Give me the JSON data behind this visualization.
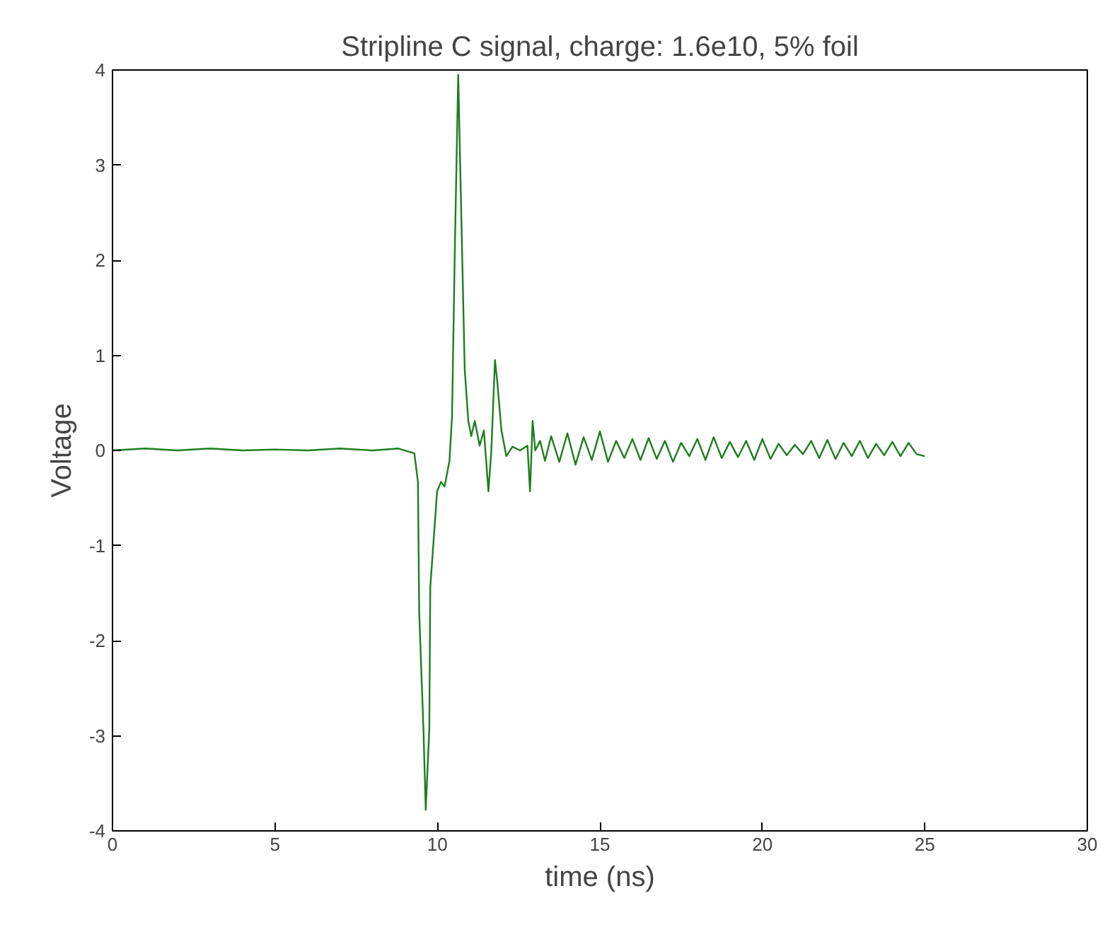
{
  "chart_data": {
    "type": "line",
    "title": "Stripline C signal, charge: 1.6e10, 5% foil",
    "xlabel": "time (ns)",
    "ylabel": "Voltage",
    "xlim": [
      0,
      30
    ],
    "ylim": [
      -4,
      4
    ],
    "xticks": [
      0,
      5,
      10,
      15,
      20,
      25,
      30
    ],
    "yticks": [
      -4,
      -3,
      -2,
      -1,
      0,
      1,
      2,
      3,
      4
    ],
    "grid": false,
    "marker": "none",
    "line_style": "solid",
    "series": [
      {
        "color": "#1e7d1e",
        "x": [
          0,
          1,
          2,
          3,
          4,
          5,
          6,
          7,
          8,
          8.8,
          9.29,
          9.4,
          9.44,
          9.57,
          9.64,
          9.75,
          9.78,
          9.99,
          10.11,
          10.22,
          10.37,
          10.45,
          10.53,
          10.64,
          10.73,
          10.84,
          10.95,
          11.04,
          11.15,
          11.3,
          11.43,
          11.57,
          11.66,
          11.77,
          11.84,
          11.97,
          12.12,
          12.31,
          12.54,
          12.77,
          12.85,
          12.93,
          13.01,
          13.16,
          13.31,
          13.5,
          13.75,
          14,
          14.25,
          14.5,
          14.75,
          15,
          15.25,
          15.5,
          15.75,
          16,
          16.25,
          16.5,
          16.75,
          17,
          17.25,
          17.5,
          17.75,
          18,
          18.25,
          18.5,
          18.75,
          19,
          19.25,
          19.5,
          19.75,
          20,
          20.25,
          20.5,
          20.75,
          21,
          21.25,
          21.5,
          21.75,
          22,
          22.25,
          22.5,
          22.75,
          23,
          23.25,
          23.5,
          23.75,
          24,
          24.25,
          24.5,
          24.75,
          25
        ],
        "values": [
          0.0,
          0.02,
          0.0,
          0.02,
          0.0,
          0.01,
          0.0,
          0.02,
          0.0,
          0.02,
          -0.03,
          -0.33,
          -1.71,
          -2.93,
          -3.78,
          -2.93,
          -1.44,
          -0.43,
          -0.33,
          -0.38,
          -0.11,
          0.36,
          2.01,
          3.95,
          2.54,
          0.85,
          0.31,
          0.15,
          0.31,
          0.05,
          0.21,
          -0.43,
          0.0,
          0.95,
          0.73,
          0.21,
          -0.06,
          0.04,
          0.0,
          0.05,
          -0.43,
          0.31,
          0.0,
          0.1,
          -0.11,
          0.15,
          -0.12,
          0.18,
          -0.15,
          0.14,
          -0.1,
          0.2,
          -0.12,
          0.1,
          -0.08,
          0.12,
          -0.1,
          0.13,
          -0.09,
          0.1,
          -0.12,
          0.08,
          -0.06,
          0.12,
          -0.1,
          0.14,
          -0.08,
          0.09,
          -0.07,
          0.1,
          -0.1,
          0.12,
          -0.09,
          0.07,
          -0.05,
          0.06,
          -0.04,
          0.1,
          -0.08,
          0.11,
          -0.09,
          0.08,
          -0.06,
          0.1,
          -0.08,
          0.07,
          -0.05,
          0.09,
          -0.06,
          0.08,
          -0.04,
          -0.06
        ]
      }
    ]
  }
}
